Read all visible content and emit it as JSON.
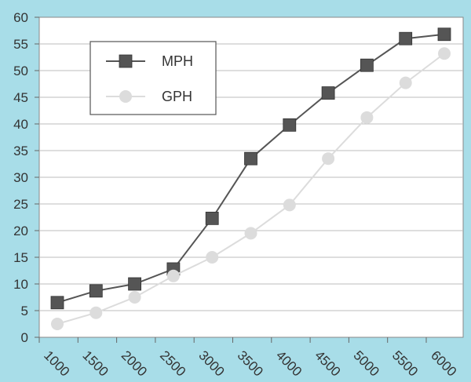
{
  "chart_data": {
    "type": "line",
    "title": "",
    "xlabel": "",
    "ylabel": "",
    "x": [
      "1000",
      "1500",
      "2000",
      "2500",
      "3000",
      "3500",
      "4000",
      "4500",
      "5000",
      "5500",
      "6000"
    ],
    "ylim": [
      0,
      60
    ],
    "yticks": [
      0,
      5,
      10,
      15,
      20,
      25,
      30,
      35,
      40,
      45,
      50,
      55,
      60
    ],
    "grid": true,
    "legend_position": "top-left",
    "series": [
      {
        "name": "MPH",
        "values": [
          6.5,
          8.7,
          10,
          12.8,
          22.3,
          33.5,
          39.8,
          45.8,
          51,
          56,
          56.8
        ],
        "marker": "square",
        "color": "#555555"
      },
      {
        "name": "GPH",
        "values": [
          2.5,
          4.6,
          7.5,
          11.5,
          15,
          19.5,
          24.8,
          33.5,
          41.2,
          47.7,
          53.2
        ],
        "marker": "circle",
        "color": "#dcdcdc"
      }
    ]
  }
}
